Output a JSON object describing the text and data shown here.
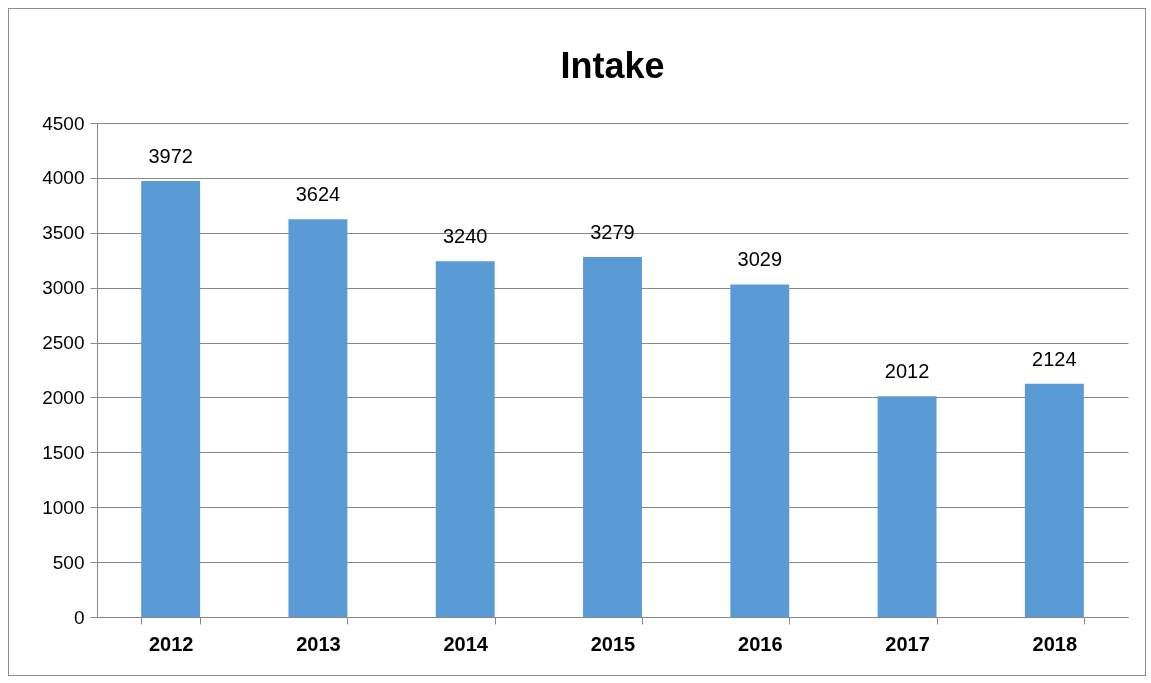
{
  "chart_data": {
    "type": "bar",
    "title": "Intake",
    "categories": [
      "2012",
      "2013",
      "2014",
      "2015",
      "2016",
      "2017",
      "2018"
    ],
    "values": [
      3972,
      3624,
      3240,
      3279,
      3029,
      2012,
      2124
    ],
    "color": "#5b9bd5",
    "ylim": [
      0,
      4500
    ],
    "yticks": [
      0,
      500,
      1000,
      1500,
      2000,
      2500,
      3000,
      3500,
      4000,
      4500
    ],
    "grid": "y",
    "data_labels": true
  }
}
